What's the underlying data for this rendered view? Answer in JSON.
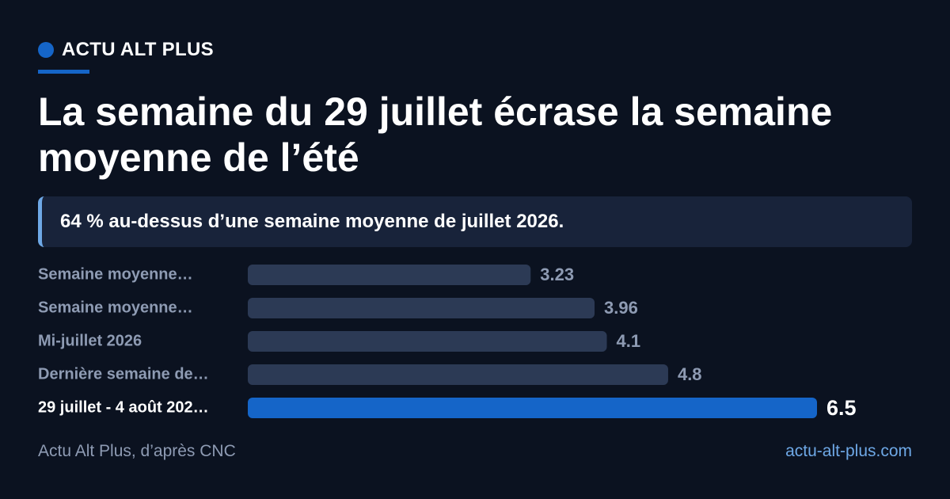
{
  "brand": {
    "name": "ACTU ALT PLUS"
  },
  "headline": "La semaine du 29 juillet écrase la semaine moyenne de l’été",
  "callout": "64 % au-dessus d’une semaine moyenne de juillet 2026.",
  "footer": {
    "source": "Actu Alt Plus, d’après CNC",
    "url": "actu-alt-plus.com"
  },
  "colors": {
    "background": "#0b1220",
    "accent": "#1565c8",
    "bar": "#2c3a55",
    "muted_text": "#8e9bb3",
    "link": "#6ea8e6"
  },
  "chart_data": {
    "type": "bar",
    "orientation": "horizontal",
    "categories": [
      "Semaine moyenne…",
      "Semaine moyenne…",
      "Mi-juillet 2026",
      "Dernière semaine de…",
      "29 juillet - 4 août 202…"
    ],
    "values": [
      3.23,
      3.96,
      4.1,
      4.8,
      6.5
    ],
    "value_labels": [
      "3.23",
      "3.96",
      "4.1",
      "4.8",
      "6.5"
    ],
    "highlight_index": 4,
    "xlim": [
      0,
      6.5
    ],
    "grid": false,
    "legend": "none"
  }
}
